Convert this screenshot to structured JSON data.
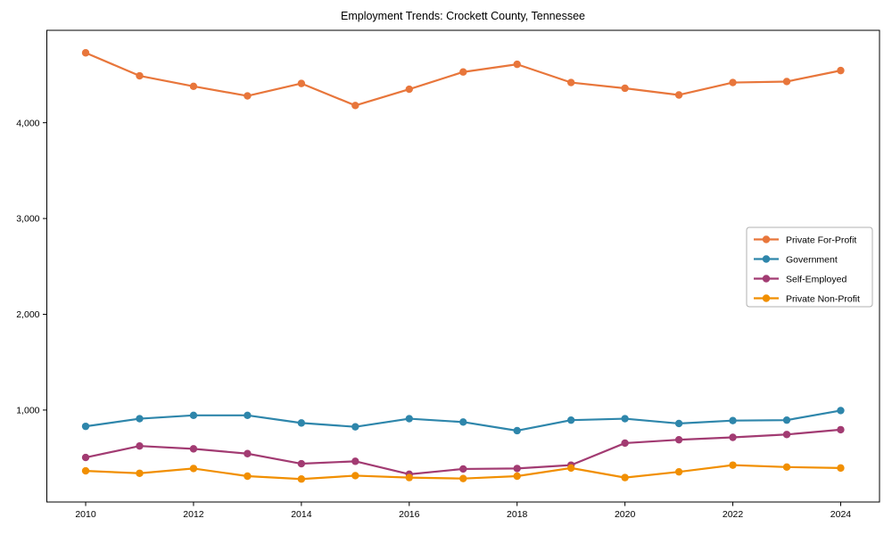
{
  "figure": {
    "title": "Employment Trends: Crockett County, Tennessee"
  },
  "chart_data": {
    "type": "line",
    "title": "Employment Trends: Crockett County, Tennessee",
    "xlabel": "",
    "ylabel": "",
    "grid": false,
    "legend_position": "center right",
    "x": [
      2010,
      2011,
      2012,
      2013,
      2014,
      2015,
      2016,
      2017,
      2018,
      2019,
      2020,
      2021,
      2022,
      2023,
      2024
    ],
    "series": [
      {
        "name": "Private For-Profit",
        "color": "#E8763B",
        "values": [
          4730,
          4490,
          4380,
          4280,
          4410,
          4180,
          4350,
          4530,
          4610,
          4420,
          4360,
          4290,
          4420,
          4430,
          4545
        ]
      },
      {
        "name": "Government",
        "color": "#2E86AB",
        "values": [
          830,
          910,
          945,
          945,
          865,
          825,
          910,
          875,
          785,
          895,
          910,
          860,
          890,
          895,
          995
        ]
      },
      {
        "name": "Self-Employed",
        "color": "#A23B72",
        "values": [
          505,
          625,
          595,
          545,
          440,
          465,
          330,
          385,
          390,
          425,
          655,
          690,
          715,
          745,
          795
        ]
      },
      {
        "name": "Private Non-Profit",
        "color": "#F18F01",
        "values": [
          365,
          340,
          390,
          310,
          280,
          315,
          295,
          285,
          310,
          395,
          295,
          355,
          425,
          405,
          395
        ]
      }
    ],
    "xlim": [
      2009.28,
      2024.72
    ],
    "ylim": [
      40,
      4965
    ],
    "x_ticks": [
      {
        "value": 2010,
        "label": "2010"
      },
      {
        "value": 2012,
        "label": "2012"
      },
      {
        "value": 2014,
        "label": "2014"
      },
      {
        "value": 2016,
        "label": "2016"
      },
      {
        "value": 2018,
        "label": "2018"
      },
      {
        "value": 2020,
        "label": "2020"
      },
      {
        "value": 2022,
        "label": "2022"
      },
      {
        "value": 2024,
        "label": "2024"
      }
    ],
    "y_ticks": [
      {
        "value": 1000,
        "label": "1,000"
      },
      {
        "value": 2000,
        "label": "2,000"
      },
      {
        "value": 3000,
        "label": "3,000"
      },
      {
        "value": 4000,
        "label": "4,000"
      }
    ]
  }
}
